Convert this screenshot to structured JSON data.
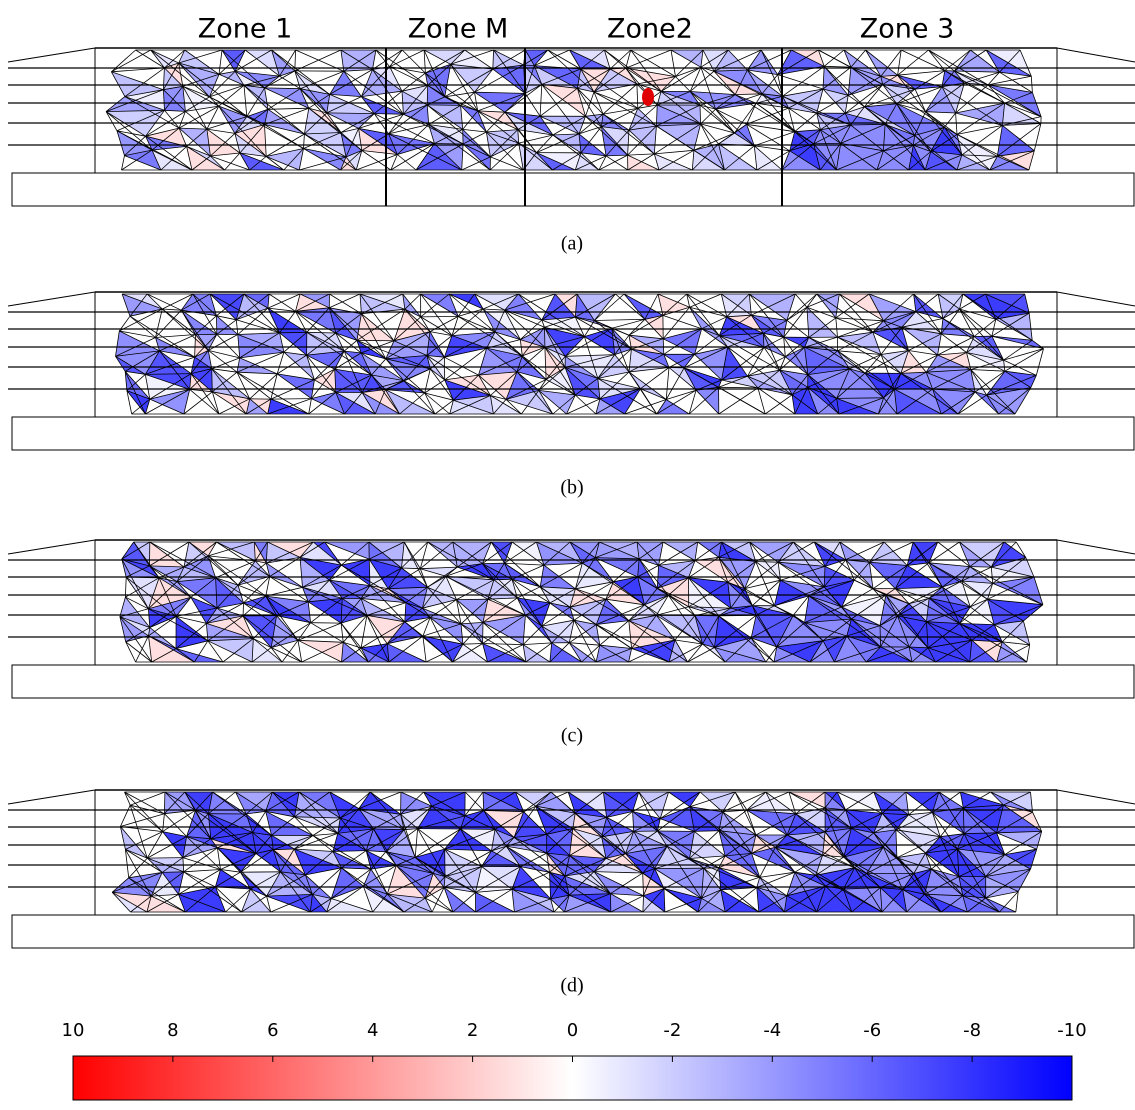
{
  "zones": [
    "Zone 1",
    "Zone M",
    "Zone2",
    "Zone 3"
  ],
  "panels": [
    {
      "caption": "(a)"
    },
    {
      "caption": "(b)"
    },
    {
      "caption": "(c)"
    },
    {
      "caption": "(d)"
    }
  ],
  "colorbar": {
    "lim": [
      10,
      -10
    ],
    "ticks": [
      10,
      8,
      6,
      4,
      2,
      0,
      -2,
      -4,
      -6,
      -8,
      -10
    ]
  }
}
